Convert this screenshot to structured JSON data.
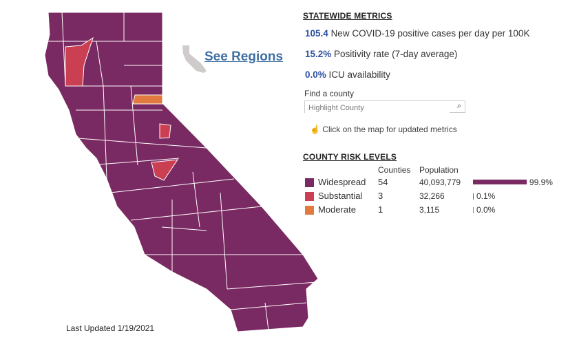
{
  "map": {
    "link_label": "See Regions",
    "last_updated": "Last Updated 1/19/2021",
    "colors": {
      "widespread": "#7a2a62",
      "substantial": "#cb3f52",
      "moderate": "#e07a3f",
      "silhouette": "#cfcbcb"
    }
  },
  "metrics": {
    "title": "STATEWIDE METRICS",
    "items": [
      {
        "value": "105.4",
        "label": "New COVID-19 positive cases per day per 100K"
      },
      {
        "value": "15.2%",
        "label": "Positivity rate (7-day average)"
      },
      {
        "value": "0.0%",
        "label": "ICU availability"
      }
    ],
    "find_label": "Find a county",
    "search_placeholder": "Highlight County",
    "hint": "Click on the map for updated metrics"
  },
  "risk": {
    "title": "COUNTY RISK LEVELS",
    "col_counties": "Counties",
    "col_population": "Population",
    "rows": [
      {
        "label": "Widespread",
        "counties": "54",
        "population": "40,093,779",
        "pct": "99.9%",
        "share": 99.9,
        "color": "#7a2a62"
      },
      {
        "label": "Substantial",
        "counties": "3",
        "population": "32,266",
        "pct": "0.1%",
        "share": 0.1,
        "color": "#cb3f52"
      },
      {
        "label": "Moderate",
        "counties": "1",
        "population": "3,115",
        "pct": "0.0%",
        "share": 0.0,
        "color": "#e07a3f"
      }
    ]
  }
}
